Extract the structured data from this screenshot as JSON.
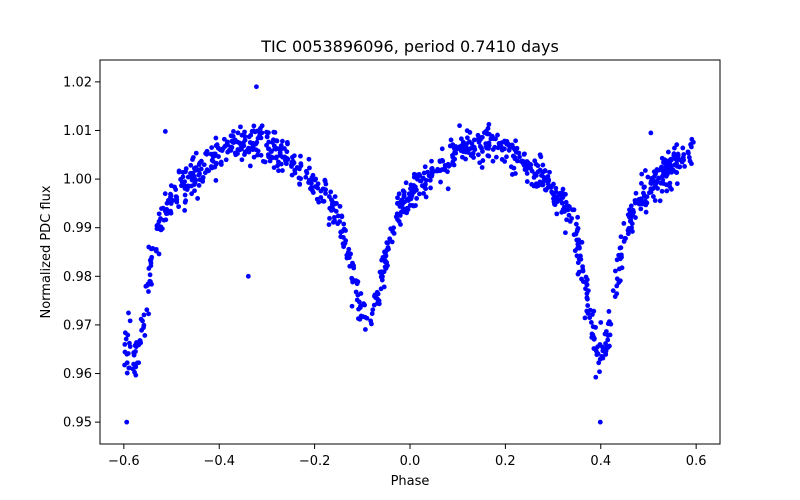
{
  "chart_data": {
    "type": "scatter",
    "title": "TIC 0053896096, period 0.7410 days",
    "xlabel": "Phase",
    "ylabel": "Normalized PDC flux",
    "xlim": [
      -0.65,
      0.65
    ],
    "ylim": [
      0.9455,
      1.0245
    ],
    "xticks": [
      -0.6,
      -0.4,
      -0.2,
      0.0,
      0.2,
      0.4,
      0.6
    ],
    "xtick_labels": [
      "−0.6",
      "−0.4",
      "−0.2",
      "0.0",
      "0.2",
      "0.4",
      "0.6"
    ],
    "yticks": [
      0.95,
      0.96,
      0.97,
      0.98,
      0.99,
      1.0,
      1.01,
      1.02
    ],
    "ytick_labels": [
      "0.95",
      "0.96",
      "0.97",
      "0.98",
      "0.99",
      "1.00",
      "1.01",
      "1.02"
    ],
    "grid": false,
    "marker_color": "#0000ff",
    "period_days": 0.741,
    "lightcurve_model": {
      "primary_eclipse": {
        "center": -0.58,
        "depth": 0.0295
      },
      "secondary_eclipse": {
        "center": -0.09,
        "depth": 0.0215
      },
      "primary_eclipse_2": {
        "center": 0.4,
        "depth": 0.0295
      },
      "max_level": 1.0085,
      "scatter": 0.0018,
      "n_points": 1100
    },
    "outliers": [
      {
        "x": -0.594,
        "y": 0.95
      },
      {
        "x": 0.399,
        "y": 0.95
      },
      {
        "x": -0.339,
        "y": 0.98
      },
      {
        "x": -0.322,
        "y": 1.019
      },
      {
        "x": -0.513,
        "y": 1.0098
      },
      {
        "x": 0.08,
        "y": 0.998
      },
      {
        "x": 0.505,
        "y": 1.0095
      },
      {
        "x": 0.4,
        "y": 0.9705
      }
    ]
  }
}
